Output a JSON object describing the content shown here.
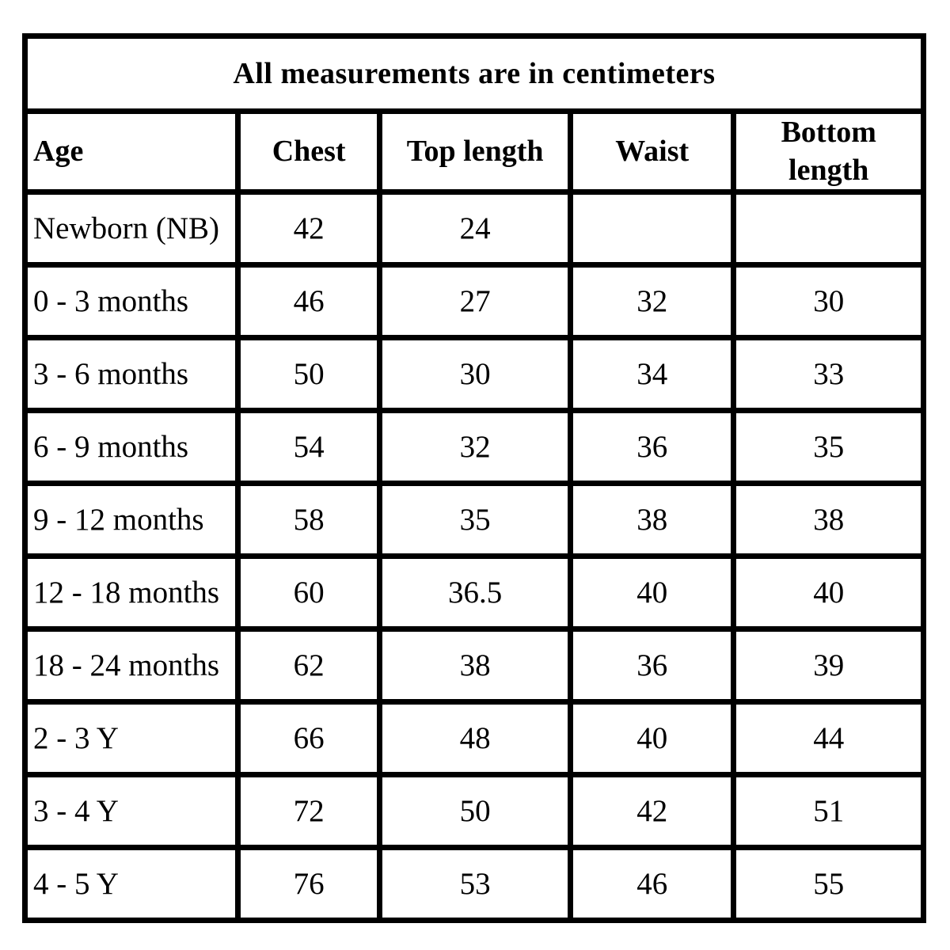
{
  "table": {
    "title": "All measurements are in centimeters",
    "headers": [
      "Age",
      "Chest",
      "Top length",
      "Waist",
      "Bottom length"
    ],
    "rows": [
      [
        "Newborn (NB)",
        "42",
        "24",
        "",
        ""
      ],
      [
        "0 - 3 months",
        "46",
        "27",
        "32",
        "30"
      ],
      [
        "3 - 6 months",
        "50",
        "30",
        "34",
        "33"
      ],
      [
        "6 - 9 months",
        "54",
        "32",
        "36",
        "35"
      ],
      [
        "9 - 12 months",
        "58",
        "35",
        "38",
        "38"
      ],
      [
        "12 - 18 months",
        "60",
        "36.5",
        "40",
        "40"
      ],
      [
        "18 - 24 months",
        "62",
        "38",
        "36",
        "39"
      ],
      [
        "2 - 3 Y",
        "66",
        "48",
        "40",
        "44"
      ],
      [
        "3 - 4 Y",
        "72",
        "50",
        "42",
        "51"
      ],
      [
        "4 - 5 Y",
        "76",
        "53",
        "46",
        "55"
      ]
    ],
    "border_color": "#000000",
    "background_color": "#ffffff",
    "text_color": "#000000"
  },
  "chart_data": {
    "type": "table",
    "title": "All measurements are in centimeters",
    "units": "centimeters",
    "columns": [
      "Age",
      "Chest",
      "Top length",
      "Waist",
      "Bottom length"
    ],
    "rows": [
      [
        "Newborn (NB)",
        42,
        24,
        null,
        null
      ],
      [
        "0 - 3 months",
        46,
        27,
        32,
        30
      ],
      [
        "3 - 6 months",
        50,
        30,
        34,
        33
      ],
      [
        "6 - 9 months",
        54,
        32,
        36,
        35
      ],
      [
        "9 - 12 months",
        58,
        35,
        38,
        38
      ],
      [
        "12 - 18 months",
        60,
        36.5,
        40,
        40
      ],
      [
        "18 - 24 months",
        62,
        38,
        36,
        39
      ],
      [
        "2 - 3 Y",
        66,
        48,
        40,
        44
      ],
      [
        "3 - 4 Y",
        72,
        50,
        42,
        51
      ],
      [
        "4 - 5 Y",
        76,
        53,
        46,
        55
      ]
    ]
  }
}
